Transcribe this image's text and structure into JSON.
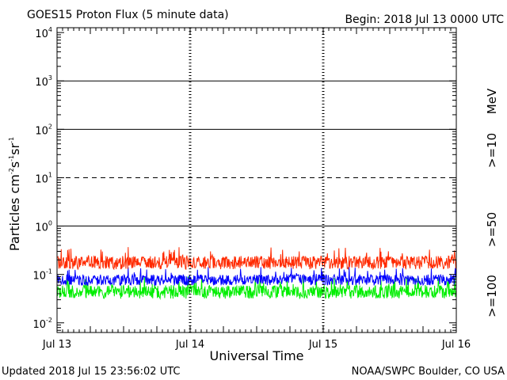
{
  "colors": {
    "p10": "#ff2a00",
    "p50": "#0000ff",
    "p100": "#00ee00",
    "axis": "#000000",
    "background": "#ffffff"
  },
  "header": {
    "title": "GOES15 Proton Flux (5 minute data)",
    "begin": "Begin: 2018 Jul 13 0000 UTC"
  },
  "footer": {
    "updated": "Updated 2018 Jul 15 23:56:02 UTC",
    "source": "NOAA/SWPC Boulder, CO USA"
  },
  "chart_data": {
    "type": "line",
    "title": "GOES15 Proton Flux (5 minute data)",
    "xlabel": "Universal Time",
    "ylabel": {
      "main": "Particles cm",
      "sup1": "-2",
      "mid1": "s",
      "sup2": "-1",
      "mid2": "sr",
      "sup3": "-1"
    },
    "x_range_days": [
      0,
      3
    ],
    "x_ticks": [
      "Jul 13",
      "Jul 14",
      "Jul 15",
      "Jul 16"
    ],
    "y_scale": "log",
    "y_range_log10": [
      -2.2,
      4.1
    ],
    "y_ticks": [
      {
        "exp": -2,
        "base": "10",
        "sup": "-2"
      },
      {
        "exp": -1,
        "base": "10",
        "sup": "-1"
      },
      {
        "exp": 0,
        "base": "10",
        "sup": "0"
      },
      {
        "exp": 1,
        "base": "10",
        "sup": "1"
      },
      {
        "exp": 2,
        "base": "10",
        "sup": "2"
      },
      {
        "exp": 3,
        "base": "10",
        "sup": "3"
      },
      {
        "exp": 4,
        "base": "10",
        "sup": "4"
      }
    ],
    "threshold_lines": [
      {
        "exp": 0,
        "style": "solid"
      },
      {
        "exp": 1,
        "style": "dashed"
      },
      {
        "exp": 2,
        "style": "solid"
      },
      {
        "exp": 3,
        "style": "solid"
      }
    ],
    "legend_unit": "MeV",
    "series": [
      {
        "name": ">=10",
        "color": "#ff2a00",
        "baseline": 0.17,
        "spread": 0.55,
        "spike": 0.5
      },
      {
        "name": ">=50",
        "color": "#0000ff",
        "baseline": 0.075,
        "spread": 0.45,
        "spike": 0.18
      },
      {
        "name": ">=100",
        "color": "#00ee00",
        "baseline": 0.042,
        "spread": 0.55,
        "spike": 0.09
      }
    ],
    "points_per_day": 288
  }
}
